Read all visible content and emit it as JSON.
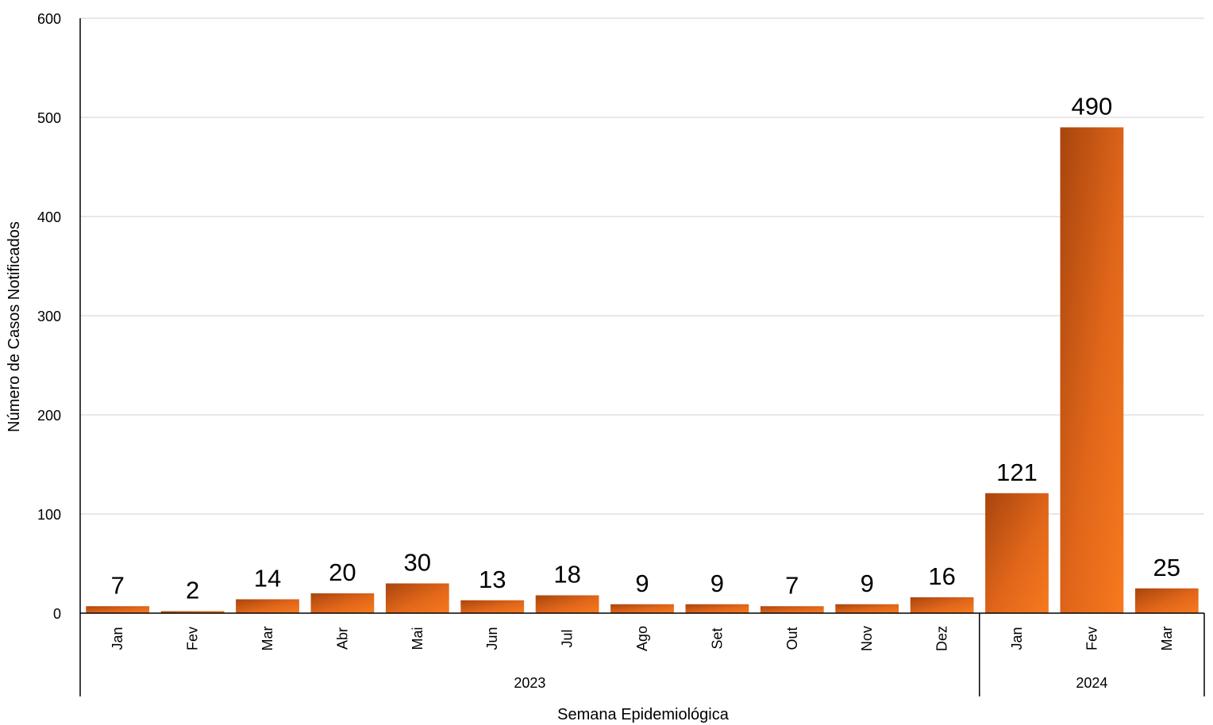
{
  "chart_data": {
    "type": "bar",
    "xlabel": "Semana Epidemiológica",
    "ylabel": "Número de Casos Notificados",
    "ylim": [
      0,
      600
    ],
    "yticks": [
      0,
      100,
      200,
      300,
      400,
      500,
      600
    ],
    "grid": true,
    "data_labels": true,
    "categories": [
      {
        "month": "Jan",
        "year": "2023"
      },
      {
        "month": "Fev",
        "year": "2023"
      },
      {
        "month": "Mar",
        "year": "2023"
      },
      {
        "month": "Abr",
        "year": "2023"
      },
      {
        "month": "Mai",
        "year": "2023"
      },
      {
        "month": "Jun",
        "year": "2023"
      },
      {
        "month": "Jul",
        "year": "2023"
      },
      {
        "month": "Ago",
        "year": "2023"
      },
      {
        "month": "Set",
        "year": "2023"
      },
      {
        "month": "Out",
        "year": "2023"
      },
      {
        "month": "Nov",
        "year": "2023"
      },
      {
        "month": "Dez",
        "year": "2023"
      },
      {
        "month": "Jan",
        "year": "2024"
      },
      {
        "month": "Fev",
        "year": "2024"
      },
      {
        "month": "Mar",
        "year": "2024"
      }
    ],
    "groups": [
      {
        "label": "2023",
        "count": 12
      },
      {
        "label": "2024",
        "count": 3
      }
    ],
    "values": [
      7,
      2,
      14,
      20,
      30,
      13,
      18,
      9,
      9,
      7,
      9,
      16,
      121,
      490,
      25
    ],
    "colors": {
      "bar_dark": "#A8450D",
      "bar_mid": "#E0661A",
      "bar_light": "#F77A1E",
      "grid": "#D9D9D9",
      "axis": "#000000"
    }
  }
}
